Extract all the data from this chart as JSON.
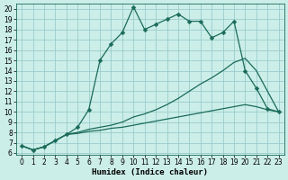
{
  "xlabel": "Humidex (Indice chaleur)",
  "bg_color": "#cceee8",
  "grid_color": "#99cccc",
  "line_color": "#1a6b5a",
  "xlim_min": -0.5,
  "xlim_max": 23.5,
  "ylim_min": 5.8,
  "ylim_max": 20.5,
  "xticks": [
    0,
    1,
    2,
    3,
    4,
    5,
    6,
    7,
    8,
    9,
    10,
    11,
    12,
    13,
    14,
    15,
    16,
    17,
    18,
    19,
    20,
    21,
    22,
    23
  ],
  "yticks": [
    6,
    7,
    8,
    9,
    10,
    11,
    12,
    13,
    14,
    15,
    16,
    17,
    18,
    19,
    20
  ],
  "curve1_x": [
    0,
    1,
    2,
    3,
    4,
    5,
    6,
    7,
    8,
    9,
    10,
    11,
    12,
    13,
    14,
    15,
    16,
    17,
    18,
    19,
    20,
    21,
    22,
    23
  ],
  "curve1_y": [
    6.7,
    6.3,
    6.6,
    7.2,
    7.8,
    8.5,
    10.2,
    15.0,
    16.6,
    17.7,
    20.2,
    18.0,
    18.5,
    19.0,
    19.5,
    18.8,
    18.8,
    17.2,
    17.7,
    18.8,
    14.0,
    12.3,
    10.3,
    10.0
  ],
  "curve2_x": [
    0,
    1,
    2,
    3,
    4,
    5,
    6,
    7,
    8,
    9,
    10,
    11,
    12,
    13,
    14,
    15,
    16,
    17,
    18,
    19,
    20,
    21,
    22,
    23
  ],
  "curve2_y": [
    6.7,
    6.3,
    6.6,
    7.2,
    7.8,
    8.0,
    8.3,
    8.5,
    8.7,
    9.0,
    9.5,
    9.8,
    10.2,
    10.7,
    11.3,
    12.0,
    12.7,
    13.3,
    14.0,
    14.8,
    15.2,
    14.0,
    12.0,
    10.0
  ],
  "curve3_x": [
    0,
    1,
    2,
    3,
    4,
    5,
    6,
    7,
    8,
    9,
    10,
    11,
    12,
    13,
    14,
    15,
    16,
    17,
    18,
    19,
    20,
    21,
    22,
    23
  ],
  "curve3_y": [
    6.7,
    6.3,
    6.6,
    7.2,
    7.8,
    7.9,
    8.1,
    8.2,
    8.4,
    8.5,
    8.7,
    8.9,
    9.1,
    9.3,
    9.5,
    9.7,
    9.9,
    10.1,
    10.3,
    10.5,
    10.7,
    10.5,
    10.2,
    10.0
  ],
  "markersize": 2.5,
  "linewidth": 0.9,
  "tick_fontsize": 5.5,
  "xlabel_fontsize": 6.5
}
